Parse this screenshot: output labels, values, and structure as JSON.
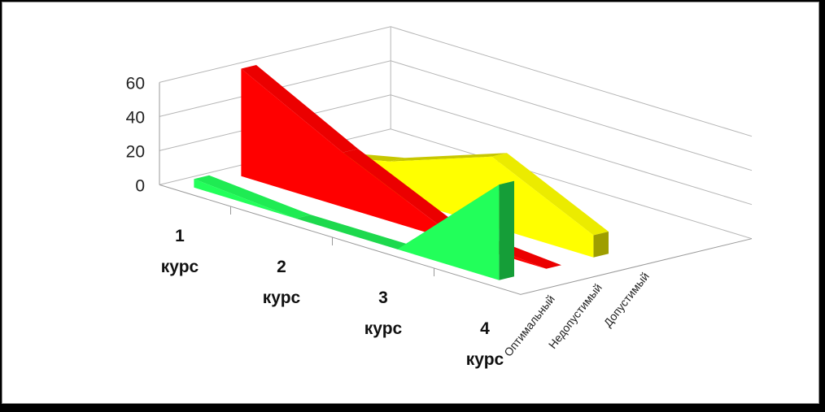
{
  "chart_data": {
    "type": "area",
    "subtype": "3d",
    "categories": [
      "1\nкурс",
      "2\nкурс",
      "3\nкурс",
      "4\nкурс"
    ],
    "series": [
      {
        "name": "Оптимальный",
        "values": [
          5,
          0,
          0,
          56
        ],
        "color": "#22ff5a"
      },
      {
        "name": "Недопустимый",
        "values": [
          63,
          32,
          5,
          0
        ],
        "color": "#ff0000"
      },
      {
        "name": "Допустимый",
        "values": [
          7,
          20,
          41,
          13
        ],
        "color": "#ffff00"
      }
    ],
    "ylim": [
      0,
      60
    ],
    "yticks": [
      0,
      20,
      40,
      60
    ],
    "title": "",
    "xlabel": "",
    "ylabel": "",
    "grid": true,
    "legend": "none"
  }
}
